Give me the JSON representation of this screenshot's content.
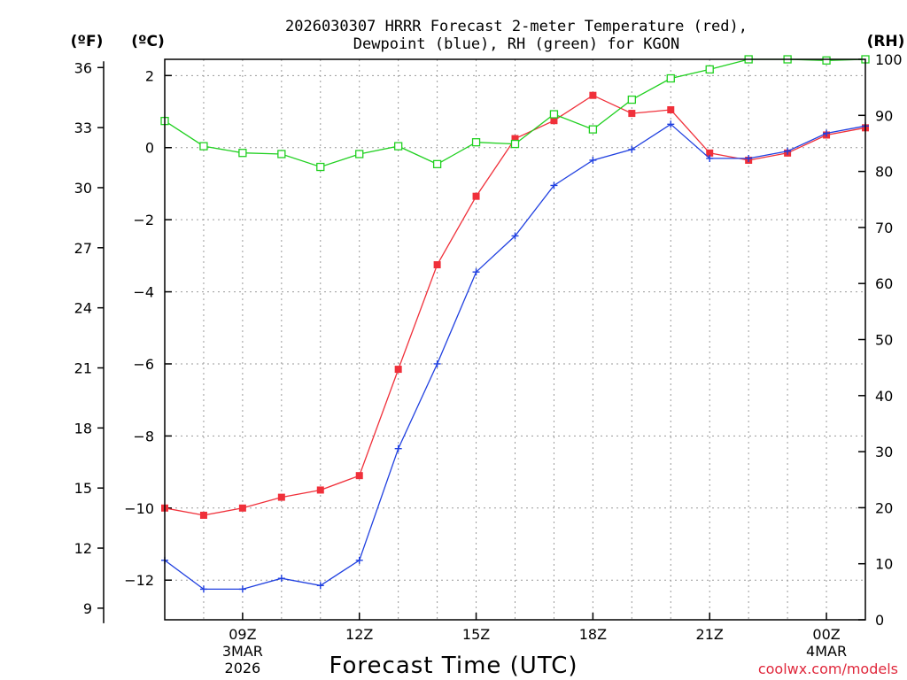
{
  "chart_data": {
    "type": "line",
    "title_line1": "2026030307 HRRR Forecast 2-meter Temperature (red),",
    "title_line2": "Dewpoint (blue), RH (green) for KGON",
    "xlabel": "Forecast Time (UTC)",
    "credit": "coolwx.com/models",
    "units": {
      "fahrenheit": "(ºF)",
      "celsius": "(ºC)",
      "rh": "(RH)"
    },
    "x_hours": [
      7,
      8,
      9,
      10,
      11,
      12,
      13,
      14,
      15,
      16,
      17,
      18,
      19,
      20,
      21,
      22,
      23,
      24,
      25
    ],
    "xlim": [
      7,
      25
    ],
    "x_ticks": [
      {
        "hour": 9,
        "label": "09Z",
        "sub1": "3MAR",
        "sub2": "2026"
      },
      {
        "hour": 12,
        "label": "12Z",
        "sub1": "",
        "sub2": ""
      },
      {
        "hour": 15,
        "label": "15Z",
        "sub1": "",
        "sub2": ""
      },
      {
        "hour": 18,
        "label": "18Z",
        "sub1": "",
        "sub2": ""
      },
      {
        "hour": 21,
        "label": "21Z",
        "sub1": "",
        "sub2": ""
      },
      {
        "hour": 24,
        "label": "00Z",
        "sub1": "4MAR",
        "sub2": ""
      }
    ],
    "y_celsius": {
      "lim": [
        -13.1,
        2.45
      ],
      "ticks": [
        2,
        0,
        -2,
        -4,
        -6,
        -8,
        -10,
        -12
      ],
      "labels": [
        "2",
        "0",
        "−2",
        "−4",
        "−6",
        "−8",
        "−10",
        "−12"
      ]
    },
    "y_fahrenheit": {
      "ticks": [
        36,
        33,
        30,
        27,
        24,
        21,
        18,
        15,
        12,
        9
      ],
      "labels": [
        "36",
        "33",
        "30",
        "27",
        "24",
        "21",
        "18",
        "15",
        "12",
        "9"
      ]
    },
    "y_rh": {
      "lim": [
        0,
        100
      ],
      "ticks": [
        100,
        90,
        80,
        70,
        60,
        50,
        40,
        30,
        20,
        10,
        0
      ],
      "labels": [
        "100",
        "90",
        "80",
        "70",
        "60",
        "50",
        "40",
        "30",
        "20",
        "10",
        "0"
      ]
    },
    "series": [
      {
        "name": "Temperature",
        "axis": "celsius",
        "color": "#f0303a",
        "marker": "filled-square",
        "values": [
          -10.0,
          -10.2,
          -10.0,
          -9.7,
          -9.5,
          -9.1,
          -6.15,
          -3.25,
          -1.35,
          0.25,
          0.75,
          1.45,
          0.95,
          1.05,
          -0.15,
          -0.35,
          -0.15,
          0.35,
          0.55
        ]
      },
      {
        "name": "Dewpoint",
        "axis": "celsius",
        "color": "#2040e0",
        "marker": "plus",
        "values": [
          -11.45,
          -12.25,
          -12.25,
          -11.95,
          -12.15,
          -11.45,
          -8.35,
          -6.0,
          -3.45,
          -2.45,
          -1.05,
          -0.35,
          -0.05,
          0.65,
          -0.3,
          -0.3,
          -0.1,
          0.4,
          0.6
        ]
      },
      {
        "name": "RH",
        "axis": "rh",
        "color": "#20d020",
        "marker": "open-square",
        "values": [
          89,
          84.5,
          83.3,
          83.1,
          80.8,
          83.1,
          84.5,
          81.3,
          85.2,
          84.9,
          90.2,
          87.5,
          92.8,
          96.6,
          98.2,
          100,
          100,
          99.8,
          100
        ]
      }
    ]
  }
}
